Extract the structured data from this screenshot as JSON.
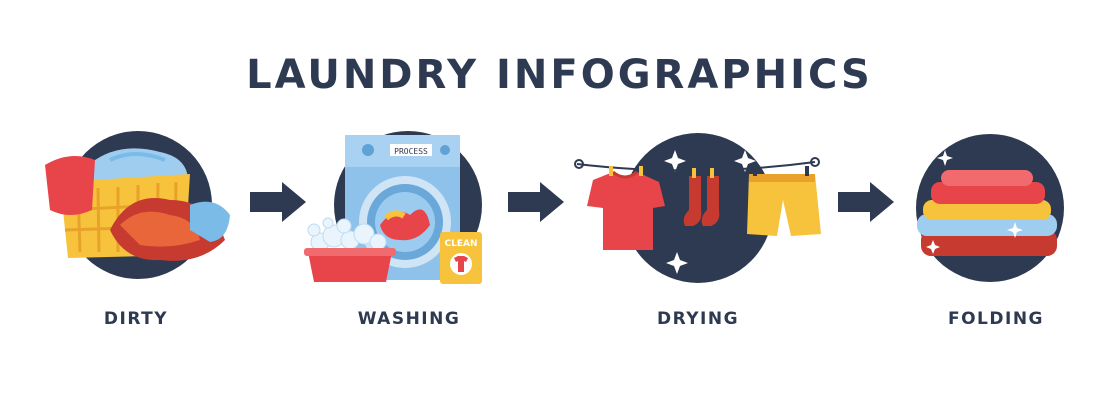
{
  "title": "LAUNDRY INFOGRAPHICS",
  "colors": {
    "navy": "#2e3a51",
    "red": "#e8454a",
    "yellow": "#f7c33c",
    "blue": "#7bbbe8",
    "background": "#ffffff"
  },
  "steps": [
    {
      "label": "DIRTY",
      "icon": "laundry-basket-icon"
    },
    {
      "label": "WASHING",
      "icon": "washing-machine-icon"
    },
    {
      "label": "DRYING",
      "icon": "clothesline-icon"
    },
    {
      "label": "FOLDING",
      "icon": "folded-stack-icon"
    }
  ],
  "machine": {
    "display_text": "PROCESS",
    "box_text": "CLEAN"
  }
}
